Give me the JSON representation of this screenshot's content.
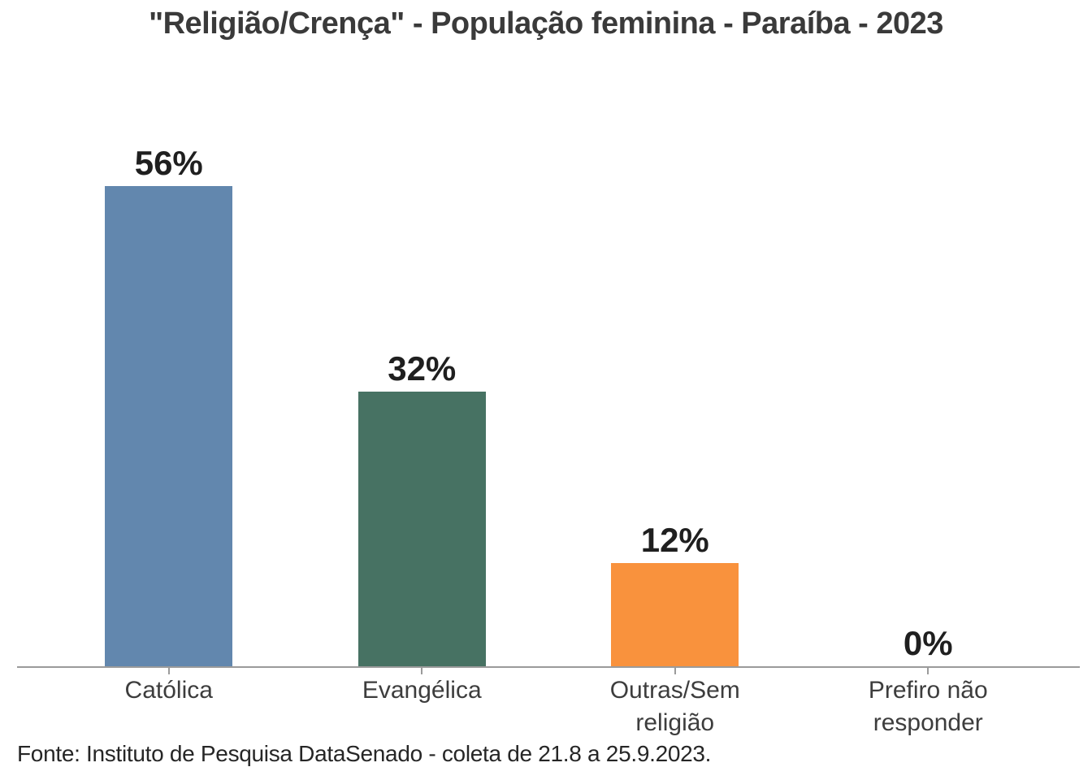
{
  "chart_data": {
    "type": "bar",
    "title": "\"Religião/Crença\" - População feminina - Paraíba - 2023",
    "categories": [
      "Católica",
      "Evangélica",
      "Outras/Sem religião",
      "Prefiro não responder"
    ],
    "values": [
      56,
      32,
      12,
      0
    ],
    "value_labels": [
      "56%",
      "32%",
      "12%",
      "0%"
    ],
    "bar_colors": [
      "#6287ae",
      "#477263",
      "#f9923d",
      ""
    ],
    "xlabel": "",
    "ylabel": "",
    "value_axis_visible": false,
    "grid": false,
    "legend": false,
    "axis_line_color": "#9b9b9b",
    "label_color": "#3d3d3d",
    "value_label_color": "#1f1f1f"
  },
  "source_note": "Fonte: Instituto de Pesquisa DataSenado - coleta de 21.8 a 25.9.2023."
}
